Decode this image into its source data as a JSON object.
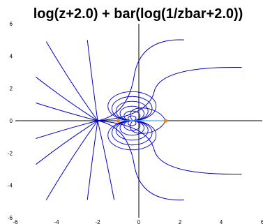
{
  "chart_data": {
    "type": "line",
    "title": "log(z+2.0) + bar(log(1/zbar+2.0))",
    "xlabel": "",
    "ylabel": "",
    "xlim": [
      -6,
      6
    ],
    "ylim": [
      -6,
      6
    ],
    "x_ticks": [
      "-6",
      "-4",
      "-2",
      "0",
      "2",
      "4",
      "6"
    ],
    "y_ticks": [
      "6",
      "4",
      "2",
      "0",
      "-2",
      "-4",
      "-6"
    ],
    "grid": false,
    "axes_lines": {
      "color": "#000000",
      "x": 0,
      "y": 0
    },
    "series": [
      {
        "kind": "streamlines",
        "color": "#0000cc",
        "source_point": [
          -2,
          0
        ],
        "far_endpoints": [
          [
            -5,
            2.7
          ],
          [
            -4.5,
            4.9
          ],
          [
            -5,
            1.1
          ],
          [
            -5,
            -1.1
          ],
          [
            -5,
            -2.7
          ],
          [
            -4.5,
            -4.9
          ],
          [
            -2.5,
            -4.9
          ],
          [
            -2.5,
            5
          ],
          [
            -1.2,
            -4.9
          ],
          [
            2.2,
            -4.9
          ],
          [
            2.2,
            5
          ],
          [
            5,
            3.3
          ],
          [
            5,
            -3.3
          ]
        ],
        "dipole_center": [
          -0.33,
          0
        ],
        "dipole_loops": 6
      },
      {
        "kind": "segment",
        "color": "#4aa8d8",
        "points": [
          [
            -1.0,
            0
          ],
          [
            1.3,
            0
          ]
        ]
      }
    ],
    "markers": {
      "color": "#ff7f0e",
      "points": [
        [
          -1.0,
          0
        ],
        [
          1.3,
          0
        ]
      ]
    }
  }
}
